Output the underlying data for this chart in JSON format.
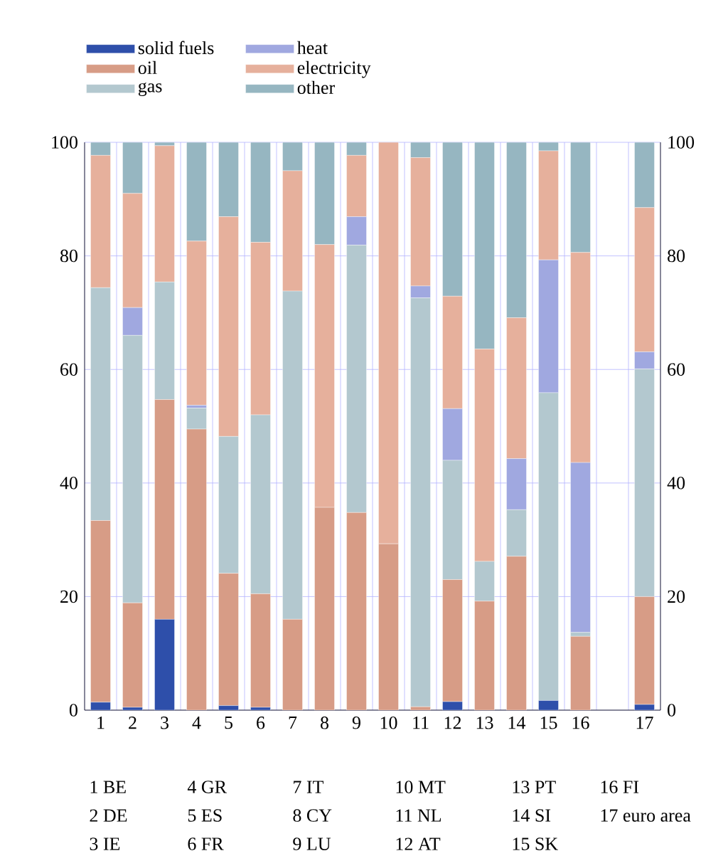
{
  "chart_data": {
    "type": "bar",
    "stacked": true,
    "categories": [
      "1",
      "2",
      "3",
      "4",
      "5",
      "6",
      "7",
      "8",
      "9",
      "10",
      "11",
      "12",
      "13",
      "14",
      "15",
      "16",
      null,
      "17"
    ],
    "series": [
      {
        "name": "solid fuels",
        "color": "#2e4faa",
        "values": [
          1.4,
          0.5,
          16,
          0,
          0.8,
          0.5,
          0,
          0,
          0,
          0,
          0,
          1.5,
          0,
          0,
          1.7,
          0,
          null,
          1
        ]
      },
      {
        "name": "oil",
        "color": "#d79c86",
        "values": [
          32,
          18.4,
          38.7,
          49.5,
          23.3,
          20,
          16,
          35.7,
          34.8,
          29.3,
          0.6,
          21.5,
          19.2,
          27.1,
          0,
          13,
          null,
          19
        ]
      },
      {
        "name": "gas",
        "color": "#b3c8cf",
        "values": [
          41,
          47.1,
          20.7,
          3.7,
          24.1,
          31.5,
          57.8,
          0,
          47.1,
          0,
          72,
          21,
          7,
          8.2,
          54.2,
          0.7,
          null,
          40.1
        ]
      },
      {
        "name": "heat",
        "color": "#a0a8e0",
        "values": [
          0,
          4.9,
          0,
          0.5,
          0,
          0,
          0,
          0,
          5,
          0,
          2.1,
          9.1,
          0,
          9,
          23.4,
          29.9,
          null,
          3
        ]
      },
      {
        "name": "electricity",
        "color": "#e6b09c",
        "values": [
          23.3,
          20.1,
          24,
          28.9,
          38.7,
          30.4,
          21.2,
          46.3,
          10.8,
          70.7,
          22.6,
          19.8,
          37.4,
          24.8,
          19.2,
          37,
          null,
          25.4
        ]
      },
      {
        "name": "other",
        "color": "#96b6c1",
        "values": [
          2.3,
          9,
          0.6,
          17.4,
          13.1,
          17.6,
          5,
          18,
          2.3,
          0,
          2.7,
          27.1,
          36.4,
          30.9,
          1.5,
          19.4,
          null,
          11.5
        ]
      }
    ],
    "ylim": [
      0,
      100
    ],
    "yticks": [
      0,
      20,
      40,
      60,
      80,
      100
    ],
    "y2lim": [
      0,
      100
    ],
    "y2ticks": [
      0,
      20,
      40,
      60,
      80,
      100
    ],
    "grid": true,
    "legend": "top",
    "annotations": [
      "1 BE",
      "2 DE",
      "3 IE",
      "4 GR",
      "5 ES",
      "6 FR",
      "7 IT",
      "8 CY",
      "9 LU",
      "10 MT",
      "11 NL",
      "12 AT",
      "13 PT",
      "14 SI",
      "15 SK",
      "16 FI",
      "17 euro area"
    ]
  }
}
